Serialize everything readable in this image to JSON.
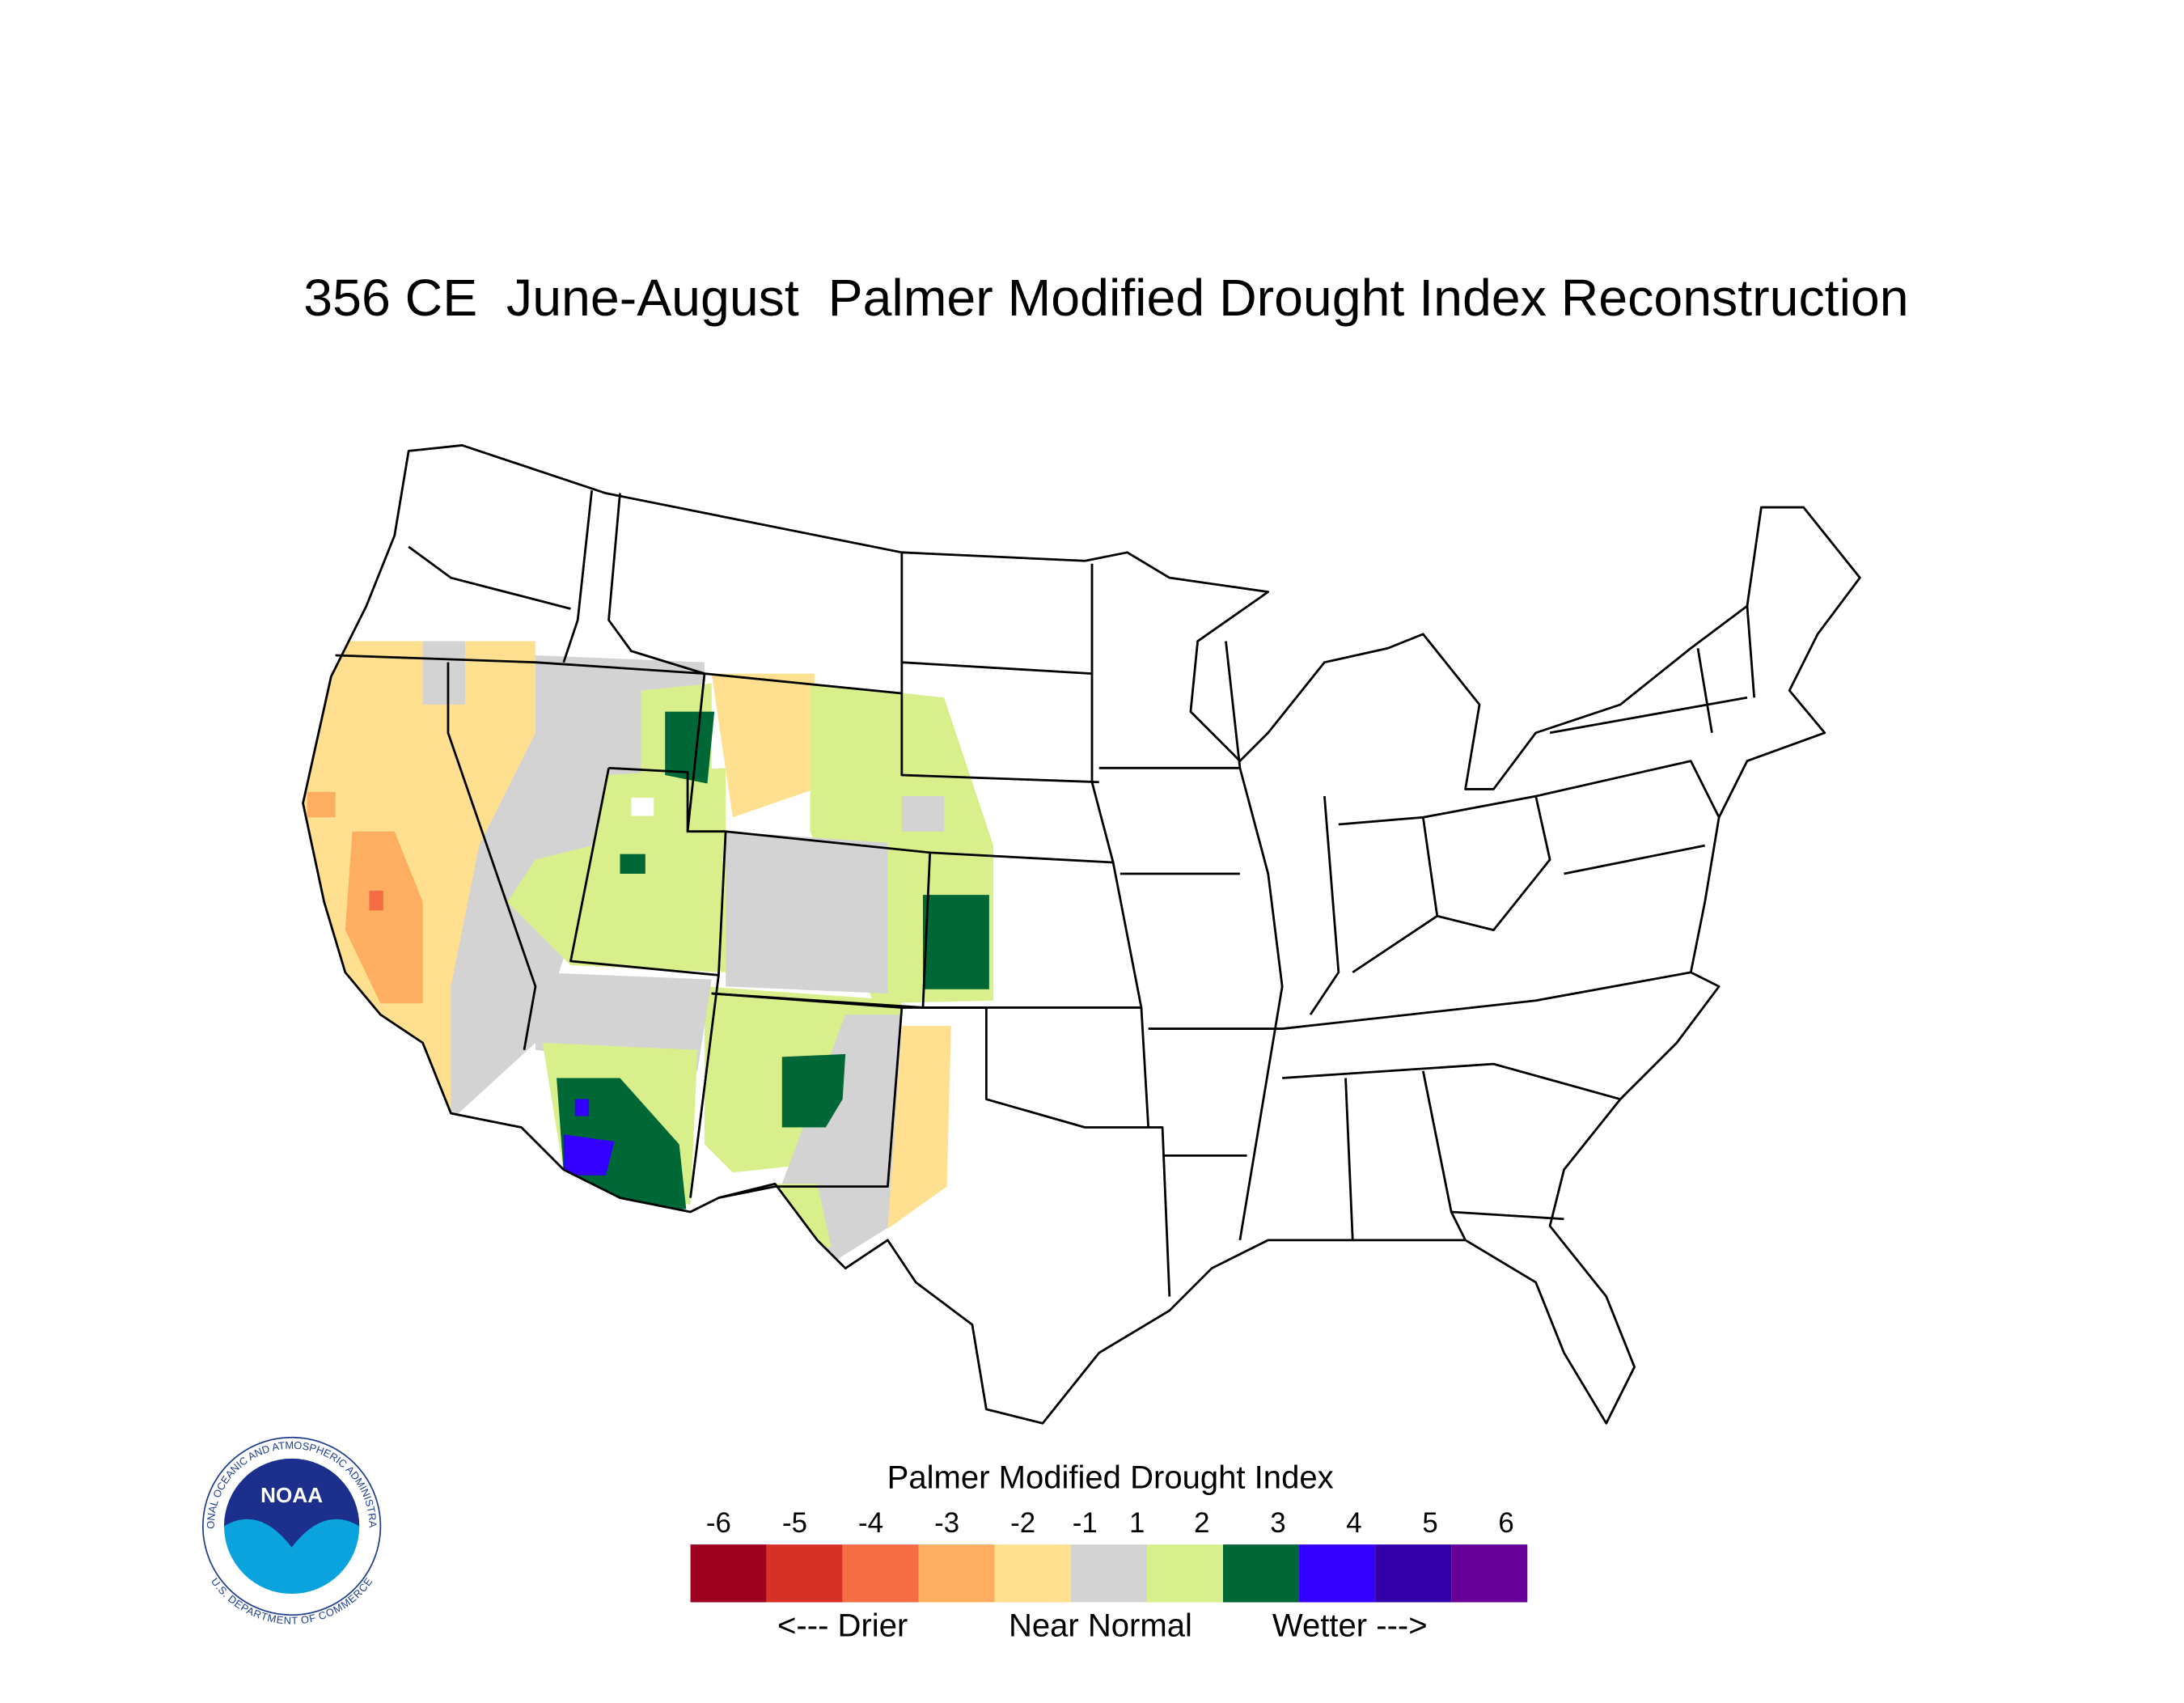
{
  "title": "356 CE  June-August  Palmer Modified Drought Index Reconstruction",
  "legend": {
    "title": "Palmer Modified Drought Index",
    "ticks": [
      -6,
      -5,
      -4,
      -3,
      -2,
      -1,
      1,
      2,
      3,
      4,
      5,
      6
    ],
    "colors": [
      "#9e0020",
      "#d73027",
      "#f46d43",
      "#fdae61",
      "#fee090",
      "#d3d3d3",
      "#d9ef8b",
      "#006837",
      "#3300ff",
      "#3300aa",
      "#660099"
    ],
    "captions": [
      "<--- Drier",
      "Near Normal",
      "Wetter --->"
    ]
  },
  "logo": {
    "name": "NOAA",
    "agency": "NATIONAL OCEANIC AND ATMOSPHERIC ADMINISTRATION",
    "department": "U.S. DEPARTMENT OF COMMERCE"
  }
}
